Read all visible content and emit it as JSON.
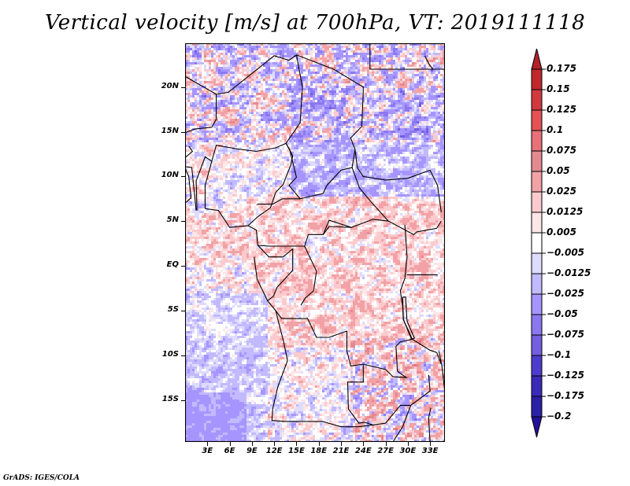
{
  "title": "Vertical velocity [m/s] at 700hPa, VT: 2019111118",
  "credit": "GrADS: IGES/COLA",
  "chart_data": {
    "type": "heatmap",
    "title": "Vertical velocity [m/s] at 700hPa, VT: 2019111118",
    "variable": "Vertical velocity",
    "units": "m/s",
    "level": "700hPa",
    "valid_time": "2019111118",
    "xlabel": "",
    "ylabel": "",
    "xlim_deg": [
      0,
      35
    ],
    "ylim_deg": [
      -19.7,
      24.9
    ],
    "x_ticks": [
      {
        "value": 3,
        "label": "3E"
      },
      {
        "value": 6,
        "label": "6E"
      },
      {
        "value": 9,
        "label": "9E"
      },
      {
        "value": 12,
        "label": "12E"
      },
      {
        "value": 15,
        "label": "15E"
      },
      {
        "value": 18,
        "label": "18E"
      },
      {
        "value": 21,
        "label": "21E"
      },
      {
        "value": 24,
        "label": "24E"
      },
      {
        "value": 27,
        "label": "27E"
      },
      {
        "value": 30,
        "label": "30E"
      },
      {
        "value": 33,
        "label": "33E"
      }
    ],
    "y_ticks": [
      {
        "value": 20,
        "label": "20N"
      },
      {
        "value": 15,
        "label": "15N"
      },
      {
        "value": 10,
        "label": "10N"
      },
      {
        "value": 5,
        "label": "5N"
      },
      {
        "value": 0,
        "label": "EQ"
      },
      {
        "value": -5,
        "label": "5S"
      },
      {
        "value": -10,
        "label": "10S"
      },
      {
        "value": -15,
        "label": "15S"
      }
    ],
    "colorbar": {
      "placement": "right",
      "extend": "both",
      "levels": [
        0.175,
        0.15,
        0.125,
        0.1,
        0.075,
        0.05,
        0.025,
        0.0125,
        0.005,
        -0.005,
        -0.0125,
        -0.025,
        -0.05,
        -0.075,
        -0.1,
        -0.125,
        -0.175,
        -0.2
      ],
      "labels": [
        "0.175",
        "0.15",
        "0.125",
        "0.1",
        "0.075",
        "0.05",
        "0.025",
        "0.0125",
        "0.005",
        "−0.005",
        "−0.0125",
        "−0.025",
        "−0.05",
        "−0.075",
        "−0.1",
        "−0.125",
        "−0.175",
        "−0.2"
      ],
      "colors_top_to_bottom": [
        "#b0232a",
        "#c0282d",
        "#d03a3e",
        "#e45256",
        "#e8717a",
        "#e38a90",
        "#f2a2a6",
        "#fbcacd",
        "#fde6e8",
        "#ffffff",
        "#dedcff",
        "#c2baff",
        "#a795ff",
        "#8b78f0",
        "#735fe0",
        "#4e3dcc",
        "#3a2ab8",
        "#2c20a6",
        "#24109a"
      ]
    },
    "regions_description": {
      "north_sahara": "mixed strong red/blue streaks",
      "sudan_chad": "mostly light-to-moderate blue",
      "central_africa": "mostly light red",
      "atlantic_southwest": "light blue/white streaks",
      "zambia_malawi": "strong red patches"
    }
  }
}
